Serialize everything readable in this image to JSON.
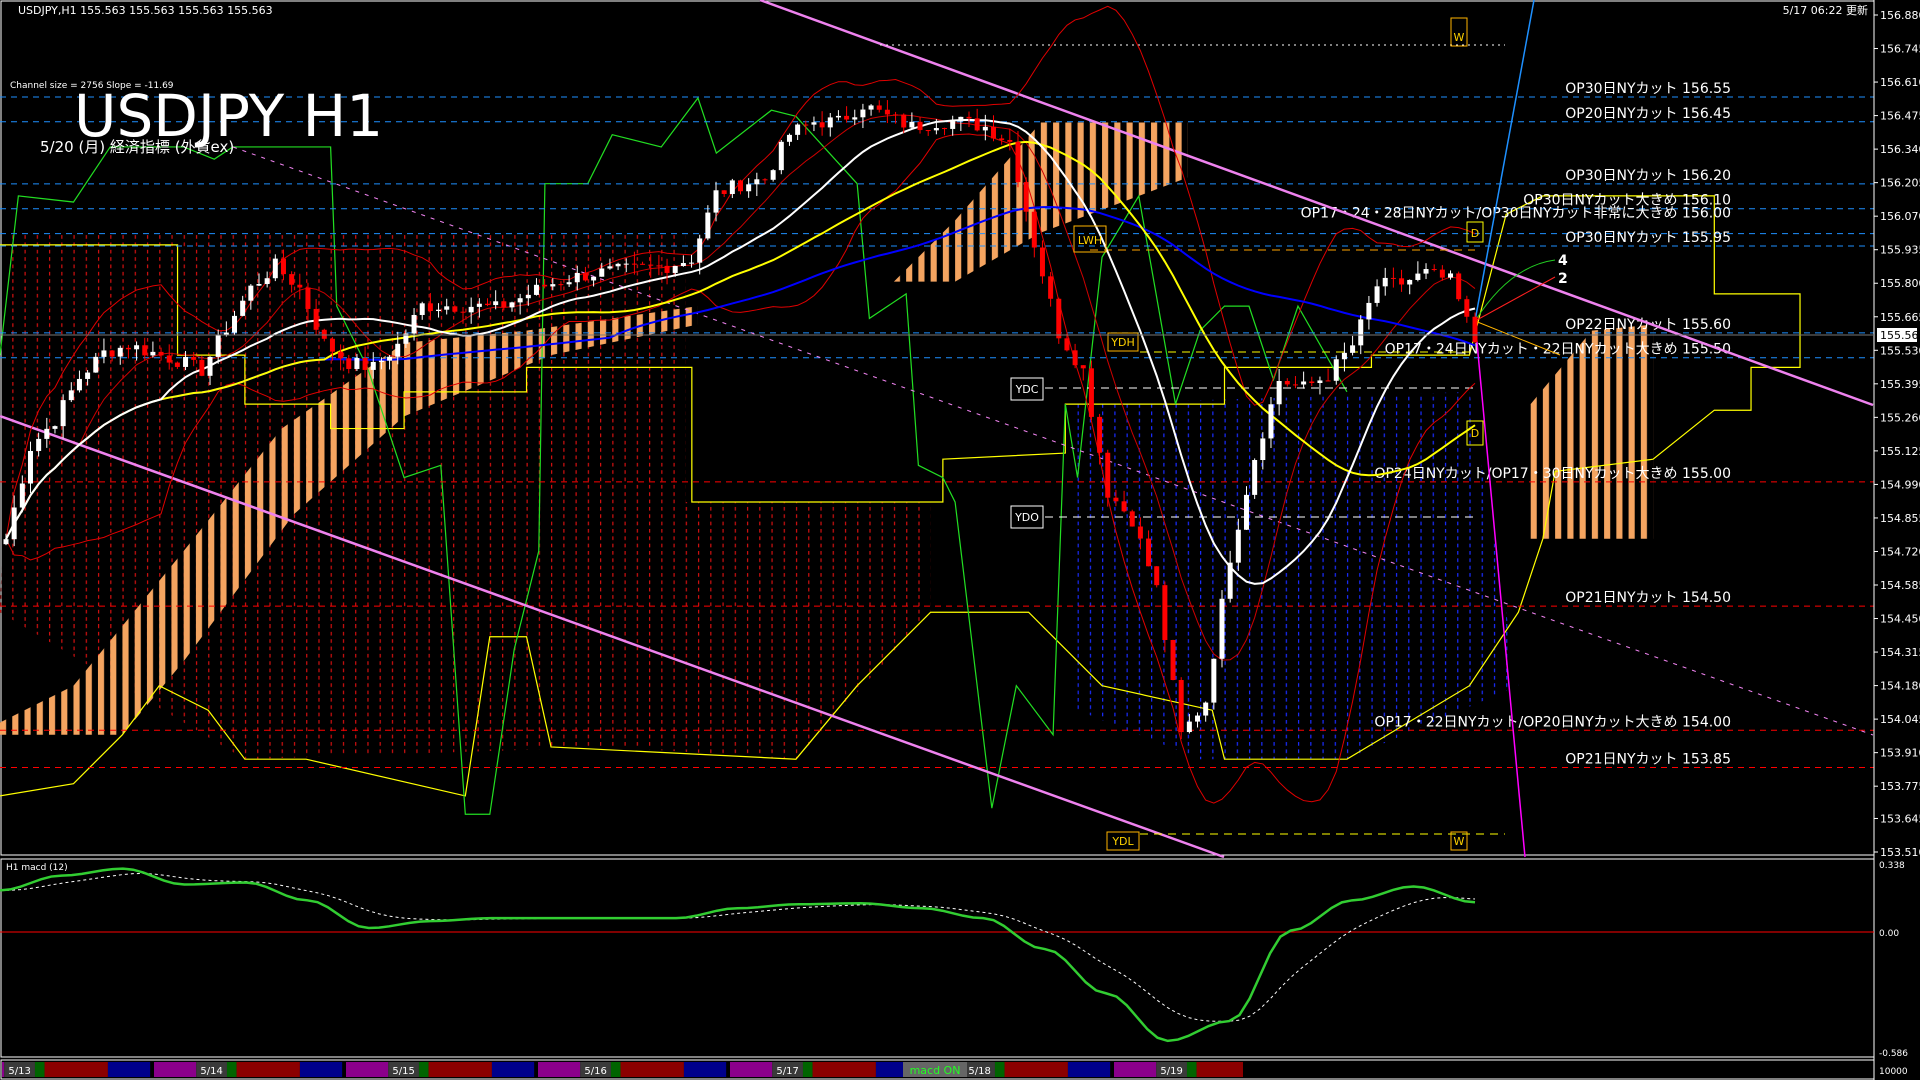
{
  "header": {
    "symbol_line": "USDJPY,H1  155.563 155.563 155.563 155.563",
    "updated": "5/17 06:22 更新",
    "channel_info": "Channel size = 2756 Slope = -11.69",
    "big_title": "USDJPY H1",
    "subtitle": "5/20 (月) 経済指標 (外貨ex)"
  },
  "colors": {
    "background": "#000000",
    "bull_candle": "#ffffff",
    "bear_candle": "#ff0000",
    "ma_fast": "#ffffff",
    "ma_mid": "#ffff00",
    "ma_slow": "#0000ff",
    "channel": "#ee82ee",
    "option_above": "#1e90ff",
    "option_below": "#ff0000",
    "macd": "#32cd32",
    "signal": "#ffffff",
    "kumo_orange": "#f4a460"
  },
  "option_levels": [
    {
      "label": "OP30日NYカット 156.55",
      "price": 156.55,
      "side": "above"
    },
    {
      "label": "OP20日NYカット 156.45",
      "price": 156.45,
      "side": "above"
    },
    {
      "label": "OP30日NYカット 156.20",
      "price": 156.2,
      "side": "above"
    },
    {
      "label": "OP30日NYカット大きめ 156.10",
      "price": 156.1,
      "side": "above"
    },
    {
      "label": "OP17・24・28日NYカット/OP30日NYカット非常に大きめ 156.00",
      "price": 156.0,
      "side": "above"
    },
    {
      "label": "OP30日NYカット 155.95",
      "price": 155.95,
      "side": "above"
    },
    {
      "label": "OP22日NYカット 155.60",
      "price": 155.6,
      "side": "above"
    },
    {
      "label": "OP17・24日NYカット・22日NYカット大きめ 155.50",
      "price": 155.5,
      "side": "above"
    },
    {
      "label": "OP24日NYカット/OP17・30日NYカット大きめ 155.00",
      "price": 155.0,
      "side": "below"
    },
    {
      "label": "OP21日NYカット 154.50",
      "price": 154.5,
      "side": "below"
    },
    {
      "label": "OP17・22日NYカット/OP20日NYカット大きめ 154.00",
      "price": 154.0,
      "side": "below"
    },
    {
      "label": "OP21日NYカット 153.85",
      "price": 153.85,
      "side": "below"
    }
  ],
  "markers": {
    "ydh": "YDH",
    "ydc": "YDC",
    "ydo": "YDO",
    "ydl": "YDL",
    "lwh": "LWH",
    "w_top": "W",
    "w_bottom": "W",
    "d_top": "D",
    "d_bottom": "D",
    "fan_4": "4",
    "fan_2": "2"
  },
  "bottom_bar": {
    "dates": [
      "5/13",
      "5/14",
      "5/15",
      "5/16",
      "5/17",
      "5/18",
      "5/19"
    ],
    "macd_toggle": "macd ON",
    "scale": "10000"
  },
  "chart_data": [
    {
      "type": "candlestick",
      "title": "USDJPY H1",
      "current_price": 155.563,
      "current_price_label": "155.563",
      "ylim": [
        153.51,
        156.88
      ],
      "y_ticks": [
        "156.880",
        "156.745",
        "156.610",
        "156.475",
        "156.340",
        "156.205",
        "156.070",
        "155.935",
        "155.800",
        "155.665",
        "155.530",
        "155.395",
        "155.260",
        "155.125",
        "154.990",
        "154.855",
        "154.720",
        "154.585",
        "154.450",
        "154.315",
        "154.180",
        "154.045",
        "153.910",
        "153.775",
        "153.645",
        "153.510"
      ],
      "approx_closes": [
        154.77,
        155.14,
        155.25,
        155.42,
        155.52,
        155.55,
        155.52,
        155.49,
        155.45,
        155.62,
        155.78,
        155.87,
        155.78,
        155.56,
        155.48,
        155.46,
        155.55,
        155.71,
        155.71,
        155.71,
        155.7,
        155.74,
        155.79,
        155.82,
        155.84,
        155.85,
        155.86,
        155.87,
        155.9,
        156.16,
        156.2,
        156.22,
        156.4,
        156.45,
        156.45,
        156.52,
        156.47,
        156.43,
        156.45,
        156.45,
        156.43,
        156.37,
        155.96,
        155.6,
        155.45,
        154.96,
        154.85,
        154.57,
        153.98,
        154.12,
        154.7,
        155.1,
        155.41,
        155.38,
        155.43,
        155.55,
        155.79,
        155.8,
        155.84,
        155.81,
        155.563
      ]
    },
    {
      "type": "line",
      "title": "H1  macd (12)",
      "ylim": [
        -0.586,
        0.338
      ],
      "y_ticks": [
        "0.338",
        "0.00",
        "-0.586"
      ],
      "macd_values": [
        0.21,
        0.285,
        0.32,
        0.24,
        0.25,
        0.16,
        0.02,
        0.055,
        0.07,
        0.07,
        0.07,
        0.07,
        0.12,
        0.14,
        0.145,
        0.12,
        0.07,
        -0.086,
        -0.31,
        -0.55,
        -0.45,
        0.007,
        0.16,
        0.23,
        0.15
      ]
    }
  ]
}
